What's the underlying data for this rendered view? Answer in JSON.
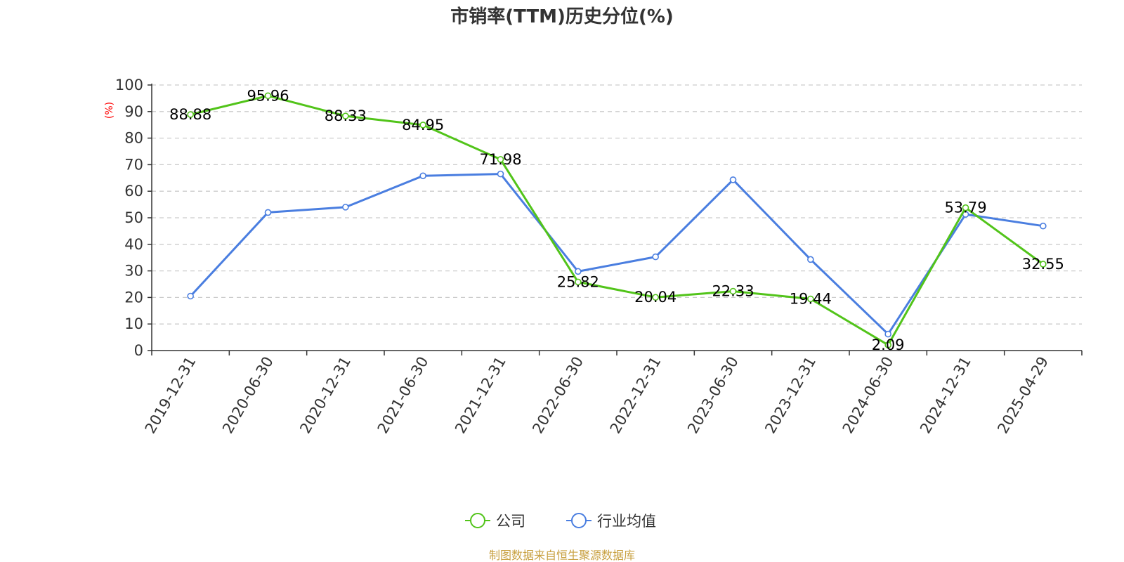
{
  "title": "市销率(TTM)历史分位(%)",
  "source": "制图数据来自恒生聚源数据库",
  "colors": {
    "company": "#52c41a",
    "industry": "#4a7ee0",
    "axis": "#333333",
    "grid": "#cccccc",
    "ylabel": "#ff0000",
    "source": "#c8a040"
  },
  "chart_data": {
    "type": "line",
    "title": "市销率(TTM)历史分位(%)",
    "ylabel": "(%)",
    "xlabel": "",
    "ylim": [
      0,
      100
    ],
    "yticks": [
      0,
      10,
      20,
      30,
      40,
      50,
      60,
      70,
      80,
      90,
      100
    ],
    "grid": true,
    "legend_position": "bottom-center",
    "categories": [
      "2019-12-31",
      "2020-06-30",
      "2020-12-31",
      "2021-06-30",
      "2021-12-31",
      "2022-06-30",
      "2022-12-31",
      "2023-06-30",
      "2023-12-31",
      "2024-06-30",
      "2024-12-31",
      "2025-04-29"
    ],
    "series": [
      {
        "name": "公司",
        "color": "#52c41a",
        "show_labels": true,
        "values": [
          88.88,
          95.96,
          88.33,
          84.95,
          71.98,
          25.82,
          20.04,
          22.33,
          19.44,
          2.09,
          53.79,
          32.55
        ]
      },
      {
        "name": "行业均值",
        "color": "#4a7ee0",
        "show_labels": false,
        "values": [
          20.5,
          52.0,
          54.0,
          65.8,
          66.5,
          29.8,
          35.3,
          64.3,
          34.3,
          6.2,
          51.3,
          46.9
        ]
      }
    ]
  }
}
